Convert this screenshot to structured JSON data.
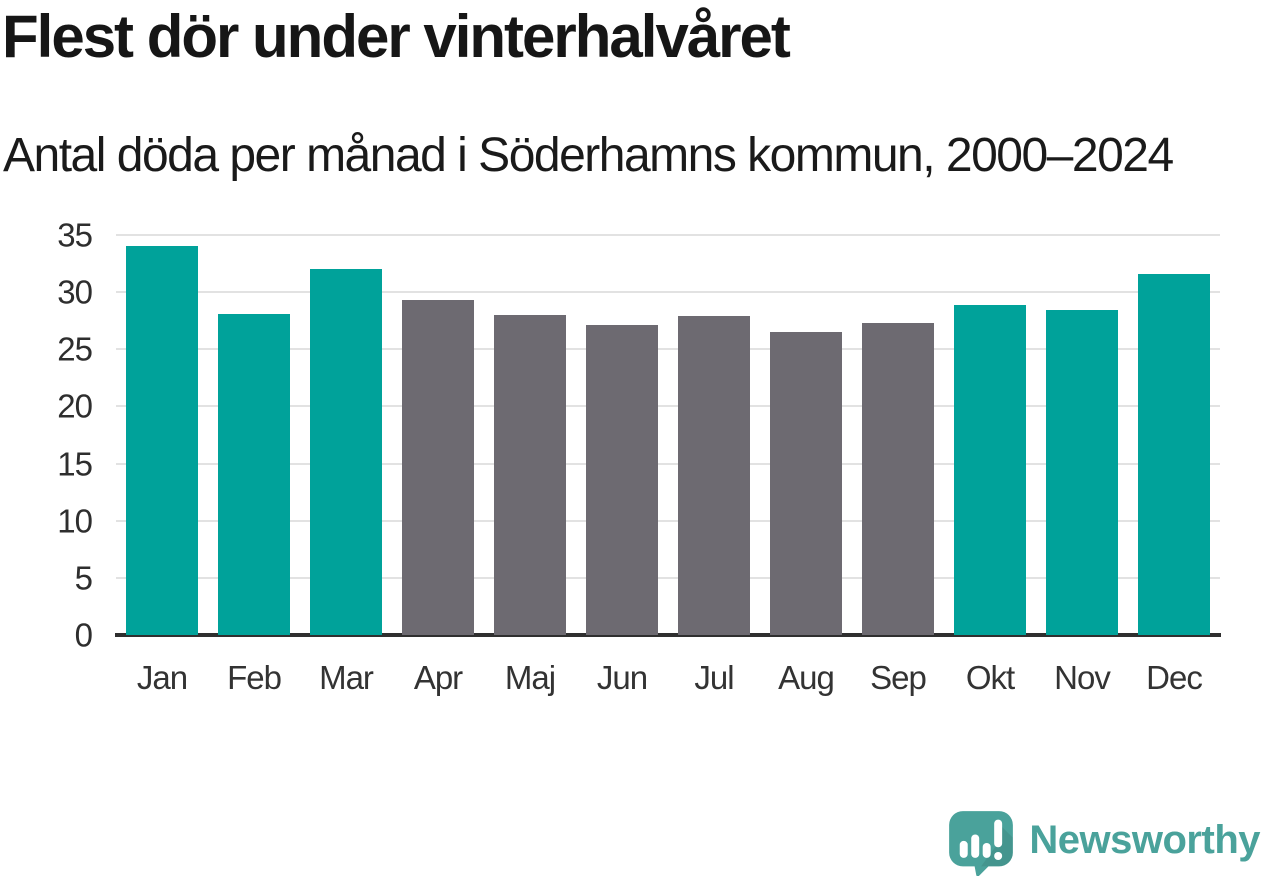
{
  "chart": {
    "title": "Flest dör under vinterhalvåret",
    "subtitle": "Antal döda per månad i Söderhamns kommun, 2000–2024"
  },
  "chart_data": {
    "type": "bar",
    "title": "Flest dör under vinterhalvåret",
    "subtitle": "Antal döda per månad i Söderhamns kommun, 2000–2024",
    "categories": [
      "Jan",
      "Feb",
      "Mar",
      "Apr",
      "Maj",
      "Jun",
      "Jul",
      "Aug",
      "Sep",
      "Okt",
      "Nov",
      "Dec"
    ],
    "values": [
      34.0,
      28.1,
      32.0,
      29.3,
      28.0,
      27.1,
      27.9,
      26.5,
      27.3,
      28.9,
      28.4,
      31.6
    ],
    "bar_colors": [
      "#00a29a",
      "#00a29a",
      "#00a29a",
      "#6d6a71",
      "#6d6a71",
      "#6d6a71",
      "#6d6a71",
      "#6d6a71",
      "#6d6a71",
      "#00a29a",
      "#00a29a",
      "#00a29a"
    ],
    "highlighted_months": [
      "Jan",
      "Feb",
      "Mar",
      "Okt",
      "Nov",
      "Dec"
    ],
    "xlabel": "",
    "ylabel": "",
    "ylim": [
      0,
      35
    ],
    "yticks": [
      0,
      5,
      10,
      15,
      20,
      25,
      30,
      35
    ],
    "grid": "horizontal",
    "legend": "none"
  },
  "colors": {
    "bar_highlight": "#00a29a",
    "bar_default": "#6d6a71",
    "gridline": "#e2e2e2",
    "axis": "#2f2f2f",
    "title_text": "#161616",
    "tick_text": "#2e2e2e",
    "brand_teal": "#4aa29b"
  },
  "branding": {
    "logo_text": "Newsworthy",
    "logo_icon": "newsworthy-speech-bubble-barchart-icon"
  }
}
